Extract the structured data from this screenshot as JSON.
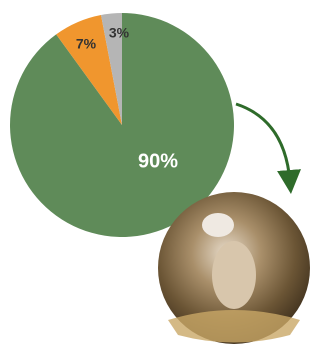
{
  "chart_data": {
    "type": "pie",
    "values": [
      90,
      7,
      3
    ],
    "value_labels": [
      "90%",
      "7%",
      "3%"
    ],
    "colors": [
      "#5f8b59",
      "#f0962e",
      "#b5b5b5"
    ]
  }
}
